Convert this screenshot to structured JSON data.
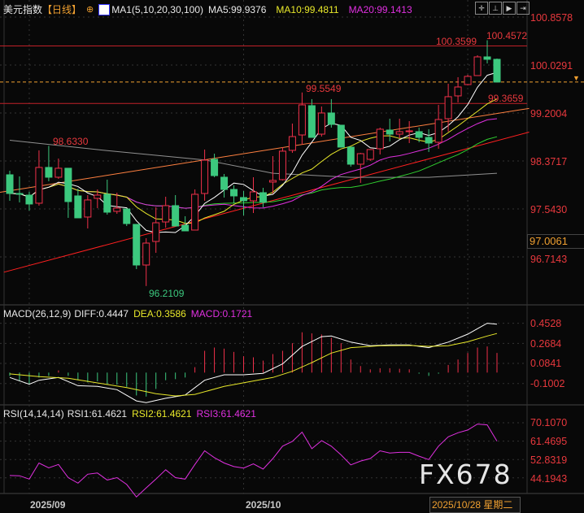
{
  "header": {
    "title": "美元指数",
    "period": "【日线】",
    "ma_label": "MA1(5,10,20,30,100)",
    "ma5": "MA5:99.9376",
    "ma10": "MA10:99.4811",
    "ma20": "MA20:99.1413"
  },
  "toolbar_icons": [
    "crosshair-icon",
    "zoom-in-icon",
    "play-icon",
    "step-forward-icon"
  ],
  "price_axis": [
    "100.8578",
    "100.0291",
    "99.2004",
    "98.3717",
    "97.5430",
    "96.7143"
  ],
  "price_axis_values": [
    100.8578,
    100.0291,
    99.2004,
    98.3717,
    97.543,
    96.7143
  ],
  "crosshair_price": "97.0061",
  "last_price": 99.735,
  "annotations": {
    "high1": "100.3599",
    "high2": "100.4572",
    "peak": "99.5549",
    "level": "99.3659",
    "left_high": "98.6330",
    "low": "96.2109"
  },
  "levels": [
    100.3599,
    99.3659
  ],
  "colors": {
    "up": "#f0304a",
    "down": "#3cc87e",
    "ma5": "#ffffff",
    "ma10": "#e8e82a",
    "ma20": "#e030e0",
    "ma30": "#30d030",
    "ma100": "#909090"
  },
  "candles": [
    [
      98.133,
      98.203,
      97.684,
      97.81
    ],
    [
      97.81,
      98.105,
      97.656,
      97.8
    ],
    [
      97.782,
      97.838,
      97.515,
      97.628
    ],
    [
      97.642,
      98.555,
      97.6,
      98.26
    ],
    [
      98.26,
      98.633,
      98.021,
      98.091
    ],
    [
      98.091,
      98.414,
      98.063,
      98.246
    ],
    [
      98.246,
      98.246,
      97.389,
      97.67
    ],
    [
      97.768,
      97.894,
      97.389,
      97.389
    ],
    [
      97.403,
      97.782,
      97.206,
      97.698
    ],
    [
      97.726,
      97.88,
      97.557,
      97.782
    ],
    [
      97.796,
      98.049,
      97.445,
      97.487
    ],
    [
      97.501,
      97.824,
      97.459,
      97.557
    ],
    [
      97.543,
      97.543,
      97.248,
      97.29
    ],
    [
      97.276,
      97.276,
      96.504,
      96.574
    ],
    [
      96.574,
      97.037,
      96.211,
      96.953
    ],
    [
      96.981,
      97.571,
      96.785,
      97.304
    ],
    [
      97.318,
      97.754,
      97.22,
      97.6
    ],
    [
      97.6,
      97.782,
      97.248,
      97.248
    ],
    [
      97.262,
      97.417,
      97.164,
      97.164
    ],
    [
      97.178,
      97.88,
      97.178,
      97.796
    ],
    [
      97.81,
      98.569,
      97.684,
      98.386
    ],
    [
      98.4,
      98.498,
      98.091,
      98.119
    ],
    [
      98.091,
      98.147,
      97.74,
      97.88
    ],
    [
      97.88,
      97.951,
      97.642,
      97.768
    ],
    [
      97.74,
      97.852,
      97.431,
      97.684
    ],
    [
      97.684,
      98.091,
      97.473,
      97.838
    ],
    [
      97.824,
      97.908,
      97.571,
      97.656
    ],
    [
      98.007,
      98.456,
      97.81,
      98.035
    ],
    [
      98.049,
      98.611,
      98.035,
      98.541
    ],
    [
      98.555,
      99.018,
      98.512,
      98.793
    ],
    [
      98.821,
      99.5549,
      98.653,
      99.341
    ],
    [
      99.327,
      99.44,
      98.779,
      98.779
    ],
    [
      98.835,
      99.313,
      98.793,
      99.201
    ],
    [
      99.201,
      99.44,
      98.948,
      99.004
    ],
    [
      98.99,
      98.99,
      98.611,
      98.611
    ],
    [
      98.611,
      98.611,
      98.274,
      98.316
    ],
    [
      98.316,
      98.512,
      97.993,
      98.498
    ],
    [
      98.4,
      98.569,
      98.372,
      98.569
    ],
    [
      98.583,
      98.948,
      98.484,
      98.92
    ],
    [
      98.906,
      99.102,
      98.709,
      98.835
    ],
    [
      98.835,
      99.102,
      98.765,
      98.878
    ],
    [
      98.88,
      99.06,
      98.681,
      98.892
    ],
    [
      98.878,
      98.948,
      98.695,
      98.779
    ],
    [
      98.779,
      98.92,
      98.527,
      98.681
    ],
    [
      98.695,
      99.341,
      98.583,
      99.088
    ],
    [
      99.102,
      99.706,
      98.878,
      99.482
    ],
    [
      99.496,
      99.819,
      99.383,
      99.65
    ],
    [
      99.692,
      99.861,
      99.678,
      99.833
    ],
    [
      99.847,
      100.198,
      99.847,
      100.17
    ],
    [
      100.17,
      100.4572,
      100.057,
      100.128
    ],
    [
      100.128,
      100.142,
      99.735,
      99.735
    ]
  ],
  "ma100": [
    [
      0,
      98.73
    ],
    [
      10,
      98.55
    ],
    [
      20,
      98.39
    ],
    [
      27,
      98.16
    ],
    [
      35,
      98.09
    ],
    [
      43,
      98.09
    ],
    [
      50,
      98.16
    ]
  ],
  "trendlines": {
    "orange": [
      [
        -1,
        97.83
      ],
      [
        53.3,
        99.28
      ]
    ],
    "red": [
      [
        -0.6,
        96.45
      ],
      [
        53.3,
        98.87
      ]
    ]
  },
  "macd": {
    "label": "MACD(26,12,9)",
    "diff": "DIFF:0.4447",
    "dea": "DEA:0.3586",
    "macd": "MACD:0.1721",
    "axis": [
      "0.4528",
      "0.2684",
      "0.0841",
      "-0.1002"
    ],
    "axis_values": [
      0.4528,
      0.2684,
      0.0841,
      -0.1002
    ],
    "hist": [
      -0.03,
      -0.08,
      -0.11,
      -0.045,
      -0.03,
      0.02,
      -0.03,
      -0.07,
      -0.09,
      -0.08,
      -0.11,
      -0.11,
      -0.13,
      -0.21,
      -0.22,
      -0.15,
      -0.07,
      -0.06,
      -0.045,
      0.05,
      0.2,
      0.23,
      0.22,
      0.19,
      0.15,
      0.14,
      0.11,
      0.17,
      0.2,
      0.27,
      0.37,
      0.36,
      0.35,
      0.32,
      0.27,
      0.12,
      0.06,
      0.03,
      0.04,
      0.04,
      0.035,
      0.03,
      -0.01,
      -0.03,
      -0.01,
      0.07,
      0.12,
      0.18,
      0.23,
      0.24,
      0.18
    ],
    "diff_series": [
      [
        0,
        -0.045
      ],
      [
        2,
        -0.107
      ],
      [
        3,
        -0.07
      ],
      [
        5,
        -0.045
      ],
      [
        7,
        -0.12
      ],
      [
        9,
        -0.127
      ],
      [
        11,
        -0.157
      ],
      [
        13,
        -0.26
      ],
      [
        14,
        -0.276
      ],
      [
        16,
        -0.236
      ],
      [
        18,
        -0.206
      ],
      [
        20,
        -0.07
      ],
      [
        22,
        -0.02
      ],
      [
        24,
        -0.02
      ],
      [
        26,
        -0.007
      ],
      [
        28,
        0.08
      ],
      [
        30,
        0.24
      ],
      [
        32,
        0.33
      ],
      [
        33,
        0.336
      ],
      [
        35,
        0.28
      ],
      [
        37,
        0.246
      ],
      [
        39,
        0.254
      ],
      [
        41,
        0.254
      ],
      [
        43,
        0.229
      ],
      [
        45,
        0.28
      ],
      [
        47,
        0.353
      ],
      [
        48,
        0.403
      ],
      [
        49,
        0.453
      ],
      [
        50,
        0.4447
      ]
    ],
    "dea_series": [
      [
        0,
        -0.012
      ],
      [
        3,
        -0.037
      ],
      [
        6,
        -0.052
      ],
      [
        9,
        -0.095
      ],
      [
        12,
        -0.137
      ],
      [
        15,
        -0.194
      ],
      [
        17,
        -0.214
      ],
      [
        19,
        -0.2
      ],
      [
        22,
        -0.127
      ],
      [
        25,
        -0.077
      ],
      [
        27,
        -0.045
      ],
      [
        29,
        0.012
      ],
      [
        31,
        0.092
      ],
      [
        33,
        0.179
      ],
      [
        35,
        0.229
      ],
      [
        38,
        0.246
      ],
      [
        41,
        0.249
      ],
      [
        43,
        0.241
      ],
      [
        45,
        0.246
      ],
      [
        47,
        0.283
      ],
      [
        49,
        0.336
      ],
      [
        50,
        0.3586
      ]
    ]
  },
  "rsi": {
    "label": "RSI(14,14,14)",
    "rsi1": "RSI1:61.4621",
    "rsi2": "RSI2:61.4621",
    "rsi3": "RSI3:61.4621",
    "axis": [
      "70.1070",
      "61.4695",
      "52.8319",
      "44.1943"
    ],
    "axis_values": [
      70.107,
      61.4695,
      52.8319,
      44.1943
    ],
    "values": [
      45.3,
      45.2,
      43.6,
      51.2,
      48.9,
      50.5,
      44.3,
      41.7,
      45.9,
      46.5,
      43.2,
      44.3,
      41.1,
      35.2,
      39.5,
      43.6,
      48.0,
      44.3,
      43.6,
      50.5,
      56.9,
      53.7,
      51.2,
      49.5,
      48.8,
      50.8,
      48.3,
      53.3,
      59.1,
      61.3,
      65.7,
      57.9,
      61.7,
      59.1,
      55.0,
      50.3,
      52.1,
      53.3,
      56.9,
      55.9,
      56.2,
      56.2,
      54.4,
      52.8,
      59.1,
      63.5,
      65.4,
      66.7,
      69.5,
      69.1,
      61.46
    ]
  },
  "x_axis": {
    "sep": "2025/09",
    "oct": "2025/10",
    "current": "2025/10/28 星期二"
  },
  "watermark": "FX678"
}
